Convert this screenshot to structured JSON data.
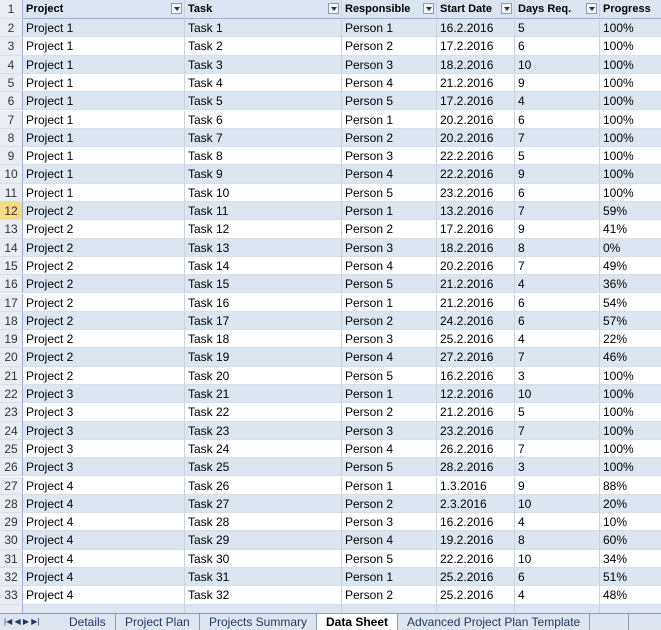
{
  "table": {
    "headers": [
      "Project",
      "Task",
      "Responsible",
      "Start Date",
      "Days Req.",
      "Progress"
    ],
    "header_row_number": "1",
    "rows": [
      [
        "2",
        "Project 1",
        "Task 1",
        "Person 1",
        "16.2.2016",
        "5",
        "100%"
      ],
      [
        "3",
        "Project 1",
        "Task 2",
        "Person 2",
        "17.2.2016",
        "6",
        "100%"
      ],
      [
        "4",
        "Project 1",
        "Task 3",
        "Person 3",
        "18.2.2016",
        "10",
        "100%"
      ],
      [
        "5",
        "Project 1",
        "Task 4",
        "Person 4",
        "21.2.2016",
        "9",
        "100%"
      ],
      [
        "6",
        "Project 1",
        "Task 5",
        "Person 5",
        "17.2.2016",
        "4",
        "100%"
      ],
      [
        "7",
        "Project 1",
        "Task 6",
        "Person 1",
        "20.2.2016",
        "6",
        "100%"
      ],
      [
        "8",
        "Project 1",
        "Task 7",
        "Person 2",
        "20.2.2016",
        "7",
        "100%"
      ],
      [
        "9",
        "Project 1",
        "Task 8",
        "Person 3",
        "22.2.2016",
        "5",
        "100%"
      ],
      [
        "10",
        "Project 1",
        "Task 9",
        "Person 4",
        "22.2.2016",
        "9",
        "100%"
      ],
      [
        "11",
        "Project 1",
        "Task 10",
        "Person 5",
        "23.2.2016",
        "6",
        "100%"
      ],
      [
        "12",
        "Project 2",
        "Task 11",
        "Person 1",
        "13.2.2016",
        "7",
        "59%"
      ],
      [
        "13",
        "Project 2",
        "Task 12",
        "Person 2",
        "17.2.2016",
        "9",
        "41%"
      ],
      [
        "14",
        "Project 2",
        "Task 13",
        "Person 3",
        "18.2.2016",
        "8",
        "0%"
      ],
      [
        "15",
        "Project 2",
        "Task 14",
        "Person 4",
        "20.2.2016",
        "7",
        "49%"
      ],
      [
        "16",
        "Project 2",
        "Task 15",
        "Person 5",
        "21.2.2016",
        "4",
        "36%"
      ],
      [
        "17",
        "Project 2",
        "Task 16",
        "Person 1",
        "21.2.2016",
        "6",
        "54%"
      ],
      [
        "18",
        "Project 2",
        "Task 17",
        "Person 2",
        "24.2.2016",
        "6",
        "57%"
      ],
      [
        "19",
        "Project 2",
        "Task 18",
        "Person 3",
        "25.2.2016",
        "4",
        "22%"
      ],
      [
        "20",
        "Project 2",
        "Task 19",
        "Person 4",
        "27.2.2016",
        "7",
        "46%"
      ],
      [
        "21",
        "Project 2",
        "Task 20",
        "Person 5",
        "16.2.2016",
        "3",
        "100%"
      ],
      [
        "22",
        "Project 3",
        "Task 21",
        "Person 1",
        "12.2.2016",
        "10",
        "100%"
      ],
      [
        "23",
        "Project 3",
        "Task 22",
        "Person 2",
        "21.2.2016",
        "5",
        "100%"
      ],
      [
        "24",
        "Project 3",
        "Task 23",
        "Person 3",
        "23.2.2016",
        "7",
        "100%"
      ],
      [
        "25",
        "Project 3",
        "Task 24",
        "Person 4",
        "26.2.2016",
        "7",
        "100%"
      ],
      [
        "26",
        "Project 3",
        "Task 25",
        "Person 5",
        "28.2.2016",
        "3",
        "100%"
      ],
      [
        "27",
        "Project 4",
        "Task 26",
        "Person 1",
        "1.3.2016",
        "9",
        "88%"
      ],
      [
        "28",
        "Project 4",
        "Task 27",
        "Person 2",
        "2.3.2016",
        "10",
        "20%"
      ],
      [
        "29",
        "Project 4",
        "Task 28",
        "Person 3",
        "16.2.2016",
        "4",
        "10%"
      ],
      [
        "30",
        "Project 4",
        "Task 29",
        "Person 4",
        "19.2.2016",
        "8",
        "60%"
      ],
      [
        "31",
        "Project 4",
        "Task 30",
        "Person 5",
        "22.2.2016",
        "10",
        "34%"
      ],
      [
        "32",
        "Project 4",
        "Task 31",
        "Person 1",
        "25.2.2016",
        "6",
        "51%"
      ],
      [
        "33",
        "Project 4",
        "Task 32",
        "Person 2",
        "25.2.2016",
        "4",
        "48%"
      ]
    ]
  },
  "tabs": [
    "Details",
    "Project Plan",
    "Projects Summary",
    "Data Sheet",
    "Advanced Project Plan Template"
  ]
}
